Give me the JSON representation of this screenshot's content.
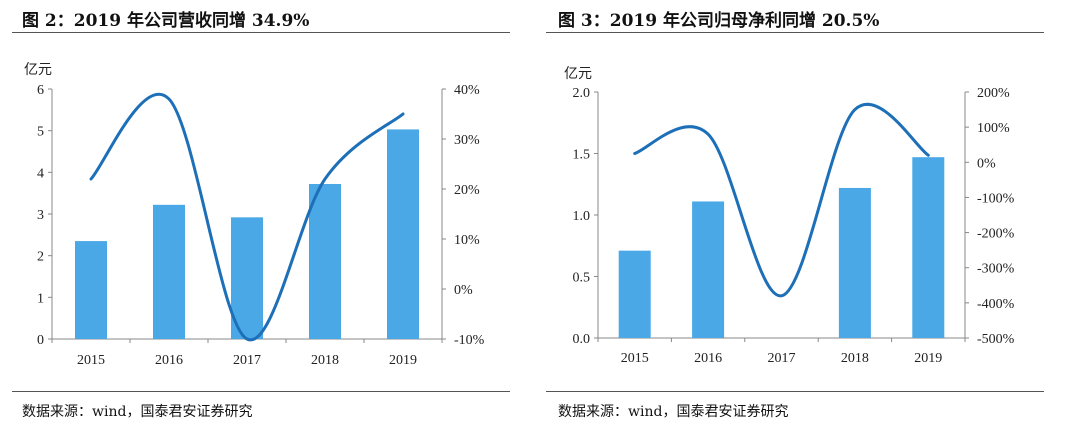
{
  "colors": {
    "bar": "#4aa8e6",
    "line": "#1d6fb7",
    "axis": "#888888"
  },
  "source": "数据来源：wind，国泰君安证券研究",
  "chart_data": [
    {
      "type": "bar+line",
      "title": "图 2：2019 年公司营收同增 34.9%",
      "ylabel_left": "亿元",
      "categories": [
        "2015",
        "2016",
        "2017",
        "2018",
        "2019"
      ],
      "bar_series": {
        "name": "营收（亿元）",
        "values": [
          2.35,
          3.22,
          2.92,
          3.72,
          5.03
        ]
      },
      "line_series": {
        "name": "同比增速",
        "values": [
          22,
          38,
          -10,
          22,
          35
        ]
      },
      "y_left": {
        "min": 0,
        "max": 6,
        "ticks": [
          "0",
          "1",
          "2",
          "3",
          "4",
          "5",
          "6"
        ]
      },
      "y_right": {
        "min": -10,
        "max": 40,
        "ticks": [
          "-10%",
          "0%",
          "10%",
          "20%",
          "30%",
          "40%"
        ]
      }
    },
    {
      "type": "bar+line",
      "title": "图 3：2019 年公司归母净利同增 20.5%",
      "ylabel_left": "亿元",
      "categories": [
        "2015",
        "2016",
        "2017",
        "2018",
        "2019"
      ],
      "bar_series": {
        "name": "归母净利（亿元）",
        "values": [
          0.71,
          1.11,
          0,
          1.22,
          1.47
        ]
      },
      "line_series": {
        "name": "同比增速",
        "values": [
          25,
          80,
          -380,
          150,
          20
        ]
      },
      "y_left": {
        "min": 0,
        "max": 2,
        "ticks": [
          "0.0",
          "0.5",
          "1.0",
          "1.5",
          "2.0"
        ]
      },
      "y_right": {
        "min": -500,
        "max": 200,
        "ticks": [
          "-500%",
          "-400%",
          "-300%",
          "-200%",
          "-100%",
          "0%",
          "100%",
          "200%"
        ]
      }
    }
  ]
}
